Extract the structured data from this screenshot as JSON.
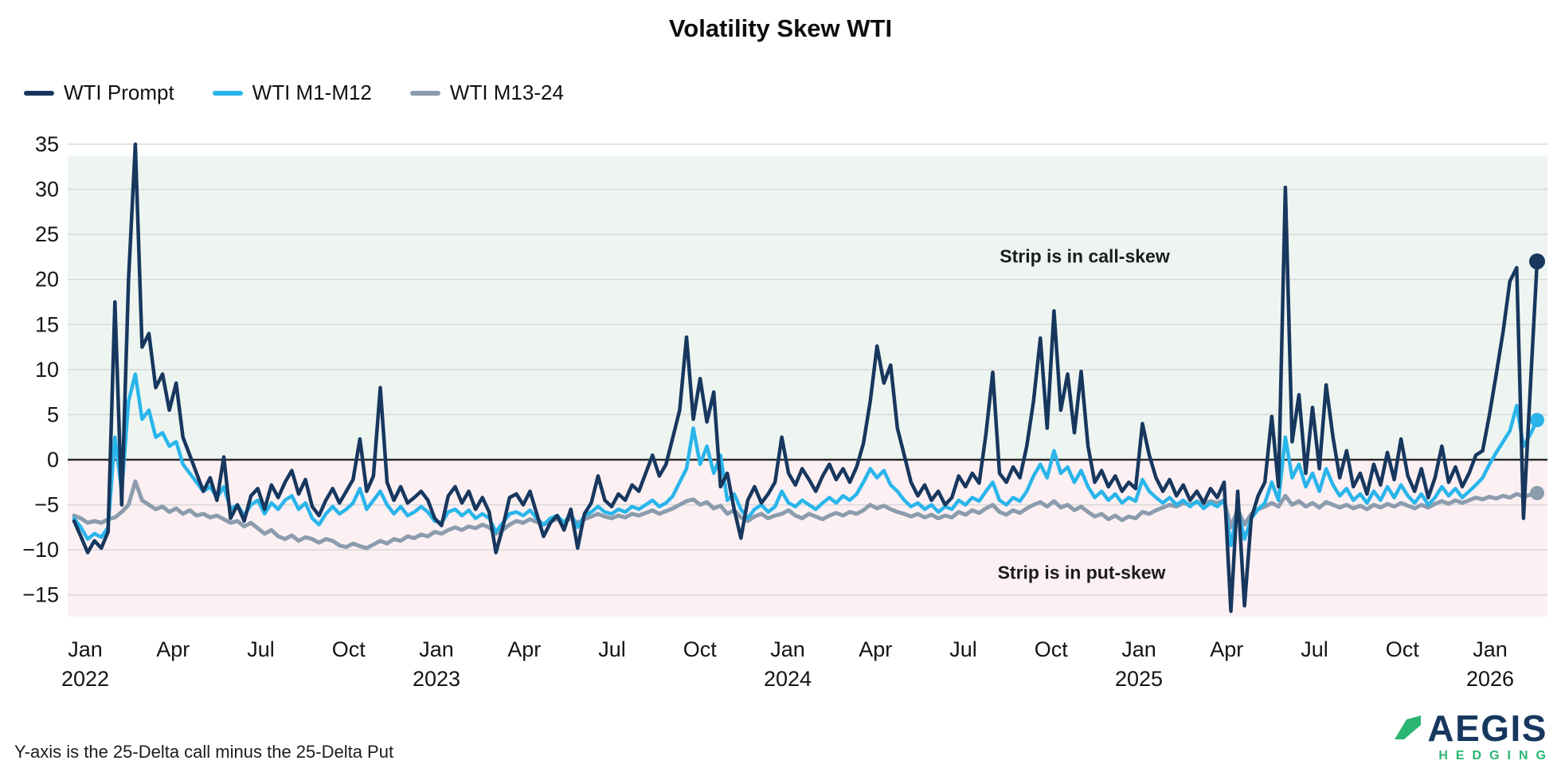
{
  "header": {
    "title": "Volatility Skew WTI"
  },
  "legend": [
    {
      "label": "WTI Prompt",
      "color": "#17375e"
    },
    {
      "label": "WTI M1-M12",
      "color": "#29b5ea"
    },
    {
      "label": "WTI M13-24",
      "color": "#8b9cad"
    }
  ],
  "annotations": {
    "call_skew": "Strip is in call-skew",
    "put_skew": "Strip is in put-skew"
  },
  "footnote": "Y-axis is the 25-Delta call minus the 25-Delta Put",
  "logo": {
    "name": "AEGIS",
    "sub": "HEDGING",
    "accent": "#2bb673",
    "navy": "#17375e"
  },
  "chart_data": {
    "type": "line",
    "title": "Volatility Skew WTI",
    "ylabel": "25-Delta call minus 25-Delta Put",
    "ylim": [
      -17.5,
      35
    ],
    "yticks": [
      35,
      30,
      25,
      20,
      15,
      10,
      5,
      0,
      -5,
      -10,
      -15
    ],
    "grid": true,
    "legend_position": "top-left",
    "zones": {
      "above_zero_color": "#eef5f1",
      "below_zero_color": "#fcf0f3",
      "above_zero_label": "Strip is in call-skew",
      "below_zero_label": "Strip is in put-skew"
    },
    "x_description": "Weekly observations, Jan 2022 through mid-Feb 2026",
    "xticks": [
      {
        "label": "Jan",
        "year": "2022"
      },
      {
        "label": "Apr"
      },
      {
        "label": "Jul"
      },
      {
        "label": "Oct"
      },
      {
        "label": "Jan",
        "year": "2023"
      },
      {
        "label": "Apr"
      },
      {
        "label": "Jul"
      },
      {
        "label": "Oct"
      },
      {
        "label": "Jan",
        "year": "2024"
      },
      {
        "label": "Apr"
      },
      {
        "label": "Jul"
      },
      {
        "label": "Oct"
      },
      {
        "label": "Jan",
        "year": "2025"
      },
      {
        "label": "Apr"
      },
      {
        "label": "Jul"
      },
      {
        "label": "Oct"
      },
      {
        "label": "Jan",
        "year": "2026"
      }
    ],
    "series": [
      {
        "name": "WTI Prompt",
        "color": "#17375e",
        "stroke_width": 4.5,
        "endpoint_dot_r": 10,
        "values": [
          -6.8,
          -8.5,
          -10.3,
          -9,
          -9.8,
          -8,
          17.5,
          -5,
          20,
          35,
          12.5,
          14,
          8,
          9.5,
          5.5,
          8.5,
          2.5,
          0.5,
          -1.5,
          -3.5,
          -2,
          -4.5,
          0.3,
          -6.5,
          -5,
          -6.8,
          -4,
          -3.2,
          -5.5,
          -2.8,
          -4.2,
          -2.5,
          -1.2,
          -3.8,
          -2.2,
          -5.2,
          -6.2,
          -4.5,
          -3.2,
          -4.8,
          -3.5,
          -2.2,
          2.3,
          -3.5,
          -1.8,
          8,
          -2.5,
          -4.5,
          -3,
          -4.8,
          -4.2,
          -3.5,
          -4.5,
          -6.5,
          -7.3,
          -4,
          -3,
          -4.8,
          -3.5,
          -5.5,
          -4.2,
          -5.8,
          -10.3,
          -7.5,
          -4.2,
          -3.8,
          -5,
          -3.5,
          -6,
          -8.5,
          -7,
          -6.2,
          -7.8,
          -5.5,
          -9.8,
          -6,
          -4.8,
          -1.8,
          -4.5,
          -5.2,
          -3.8,
          -4.5,
          -2.8,
          -3.5,
          -1.5,
          0.5,
          -1.8,
          -0.5,
          2.5,
          5.5,
          13.6,
          4.5,
          9,
          4.2,
          7.5,
          -3,
          -1.5,
          -5.5,
          -8.7,
          -4.5,
          -3,
          -4.8,
          -3.8,
          -2.5,
          2.5,
          -1.5,
          -2.8,
          -1,
          -2.2,
          -3.5,
          -1.8,
          -0.5,
          -2.2,
          -1,
          -2.5,
          -0.8,
          1.8,
          6.5,
          12.6,
          8.5,
          10.5,
          3.5,
          0.5,
          -2.5,
          -4,
          -2.8,
          -4.5,
          -3.5,
          -5,
          -4.2,
          -1.8,
          -3,
          -1.5,
          -2.6,
          2.8,
          9.7,
          -1.5,
          -2.5,
          -0.8,
          -2,
          1.5,
          6.5,
          13.5,
          3.5,
          16.5,
          5.5,
          9.5,
          3,
          9.8,
          1.5,
          -2.5,
          -1.2,
          -3,
          -1.8,
          -3.5,
          -2.5,
          -3.2,
          4,
          0.5,
          -2,
          -3.5,
          -2.2,
          -4,
          -2.8,
          -4.5,
          -3.5,
          -4.8,
          -3.2,
          -4.2,
          -2.5,
          -16.8,
          -3.5,
          -16.2,
          -6.5,
          -4,
          -2.5,
          4.8,
          -3,
          30.2,
          2,
          7.2,
          -1.5,
          5.8,
          -1,
          8.3,
          2.5,
          -2,
          1,
          -3,
          -1.5,
          -3.8,
          -0.5,
          -2.8,
          0.8,
          -2.2,
          2.3,
          -1.8,
          -3.5,
          -1,
          -4.2,
          -2,
          1.5,
          -2.5,
          -0.8,
          -3,
          -1.5,
          0.5,
          1,
          5,
          9.5,
          14.2,
          19.8,
          21.3,
          -6.5,
          8,
          22
        ]
      },
      {
        "name": "WTI M1-M12",
        "color": "#29b5ea",
        "stroke_width": 4.5,
        "endpoint_dot_r": 9,
        "values": [
          -6.5,
          -7.5,
          -8.8,
          -8.2,
          -8.6,
          -7.5,
          2.5,
          -3.5,
          6.5,
          9.5,
          4.5,
          5.5,
          2.5,
          3,
          1.5,
          2,
          -0.5,
          -1.5,
          -2.5,
          -3.5,
          -3,
          -4.2,
          -3,
          -5.5,
          -5,
          -6.2,
          -5,
          -4.5,
          -6,
          -4.8,
          -5.5,
          -4.5,
          -4,
          -5.5,
          -4.8,
          -6.5,
          -7.2,
          -6,
          -5.2,
          -6,
          -5.5,
          -4.8,
          -3.2,
          -5.5,
          -4.5,
          -3.5,
          -5,
          -6,
          -5.2,
          -6.2,
          -5.8,
          -5.2,
          -5.8,
          -6.8,
          -7,
          -5.8,
          -5.5,
          -6.2,
          -5.6,
          -6.5,
          -6,
          -6.5,
          -8,
          -7,
          -6,
          -5.8,
          -6.2,
          -5.6,
          -6.5,
          -7.2,
          -6.5,
          -6.2,
          -7,
          -6,
          -7.5,
          -6.2,
          -5.8,
          -5.2,
          -5.8,
          -6,
          -5.5,
          -5.8,
          -5.2,
          -5.5,
          -5,
          -4.5,
          -5.2,
          -4.8,
          -4,
          -2.5,
          -1,
          3.5,
          -0.5,
          1.5,
          -1.5,
          0.5,
          -4.5,
          -3.8,
          -5.5,
          -6.5,
          -5.5,
          -5,
          -5.8,
          -5.2,
          -3.5,
          -4.8,
          -5.2,
          -4.5,
          -5,
          -5.5,
          -4.8,
          -4.2,
          -4.8,
          -4,
          -4.5,
          -3.8,
          -2.5,
          -1,
          -2,
          -1.2,
          -2.8,
          -3.5,
          -4.5,
          -5.2,
          -4.8,
          -5.5,
          -5,
          -5.8,
          -5.2,
          -5.5,
          -4.5,
          -5,
          -4.2,
          -4.6,
          -3.5,
          -2.5,
          -4.5,
          -5,
          -4.2,
          -4.6,
          -3.5,
          -1.8,
          -0.5,
          -2,
          1,
          -1.5,
          -0.8,
          -2.5,
          -1.2,
          -3,
          -4.2,
          -3.5,
          -4.5,
          -3.8,
          -4.8,
          -4.2,
          -4.6,
          -2.2,
          -3.5,
          -4.2,
          -4.8,
          -4.2,
          -5,
          -4.5,
          -5.2,
          -4.6,
          -5.4,
          -4.8,
          -5.2,
          -4.5,
          -9.5,
          -5.5,
          -8.8,
          -6.5,
          -5.5,
          -4.8,
          -2.5,
          -4.5,
          2.5,
          -2,
          -0.5,
          -3,
          -1.5,
          -3.5,
          -1,
          -2.8,
          -4,
          -3.2,
          -4.5,
          -3.8,
          -4.8,
          -3.5,
          -4.5,
          -3,
          -4.2,
          -2.8,
          -4,
          -4.8,
          -3.8,
          -5,
          -4.2,
          -3,
          -4,
          -3.2,
          -4.2,
          -3.5,
          -2.8,
          -2,
          -0.5,
          0.8,
          2,
          3.2,
          6,
          1.5,
          2.8,
          4.4
        ]
      },
      {
        "name": "WTI M13-24",
        "color": "#8b9cad",
        "stroke_width": 5,
        "endpoint_dot_r": 9,
        "values": [
          -6.2,
          -6.5,
          -7,
          -6.8,
          -7,
          -6.6,
          -6.4,
          -5.8,
          -5,
          -2.4,
          -4.5,
          -5,
          -5.5,
          -5.2,
          -5.8,
          -5.4,
          -6,
          -5.6,
          -6.2,
          -6,
          -6.4,
          -6.2,
          -6.6,
          -7,
          -6.8,
          -7.4,
          -7,
          -7.6,
          -8.2,
          -7.8,
          -8.5,
          -8.8,
          -8.4,
          -9,
          -8.6,
          -8.8,
          -9.2,
          -8.8,
          -9,
          -9.5,
          -9.7,
          -9.3,
          -9.6,
          -9.8,
          -9.4,
          -9,
          -9.3,
          -8.8,
          -9,
          -8.5,
          -8.7,
          -8.3,
          -8.5,
          -8,
          -8.2,
          -7.8,
          -7.5,
          -7.8,
          -7.4,
          -7.6,
          -7.2,
          -7.5,
          -8.2,
          -7.8,
          -7.2,
          -6.8,
          -7,
          -6.6,
          -6.9,
          -7.2,
          -6.8,
          -6.6,
          -6.9,
          -6.5,
          -7,
          -6.6,
          -6.3,
          -6,
          -6.3,
          -6.5,
          -6.2,
          -6.4,
          -6,
          -6.2,
          -5.9,
          -5.6,
          -6,
          -5.7,
          -5.4,
          -5,
          -4.6,
          -4.4,
          -5,
          -4.7,
          -5.4,
          -5.1,
          -6,
          -5.6,
          -6.4,
          -6.8,
          -6.3,
          -6,
          -6.5,
          -6.2,
          -6,
          -5.6,
          -6.2,
          -6.5,
          -6,
          -6.3,
          -6.6,
          -6.2,
          -5.9,
          -6.2,
          -5.8,
          -6,
          -5.6,
          -5,
          -5.4,
          -5.1,
          -5.5,
          -5.8,
          -6,
          -6.3,
          -6,
          -6.4,
          -6.1,
          -6.5,
          -6.2,
          -6.4,
          -5.8,
          -6.1,
          -5.6,
          -5.9,
          -5.4,
          -5,
          -5.8,
          -6.1,
          -5.6,
          -5.9,
          -5.4,
          -5,
          -4.7,
          -5.2,
          -4.6,
          -5.3,
          -5,
          -5.6,
          -5.2,
          -5.8,
          -6.3,
          -6,
          -6.6,
          -6.2,
          -6.7,
          -6.3,
          -6.5,
          -5.8,
          -6,
          -5.6,
          -5.3,
          -5,
          -5.2,
          -4.8,
          -5,
          -4.7,
          -4.9,
          -4.6,
          -4.8,
          -4.5,
          -7.5,
          -5.5,
          -7.2,
          -6,
          -5.5,
          -5.2,
          -4.8,
          -5.2,
          -4,
          -5,
          -4.6,
          -5.2,
          -4.8,
          -5.3,
          -4.7,
          -5,
          -5.3,
          -5,
          -5.4,
          -5.1,
          -5.5,
          -5,
          -5.3,
          -4.9,
          -5.2,
          -4.8,
          -5.1,
          -5.4,
          -5,
          -5.3,
          -4.9,
          -4.6,
          -4.9,
          -4.5,
          -4.8,
          -4.5,
          -4.2,
          -4.4,
          -4.1,
          -4.3,
          -4,
          -4.2,
          -3.8,
          -4.1,
          -3.9,
          -3.7
        ]
      }
    ]
  }
}
